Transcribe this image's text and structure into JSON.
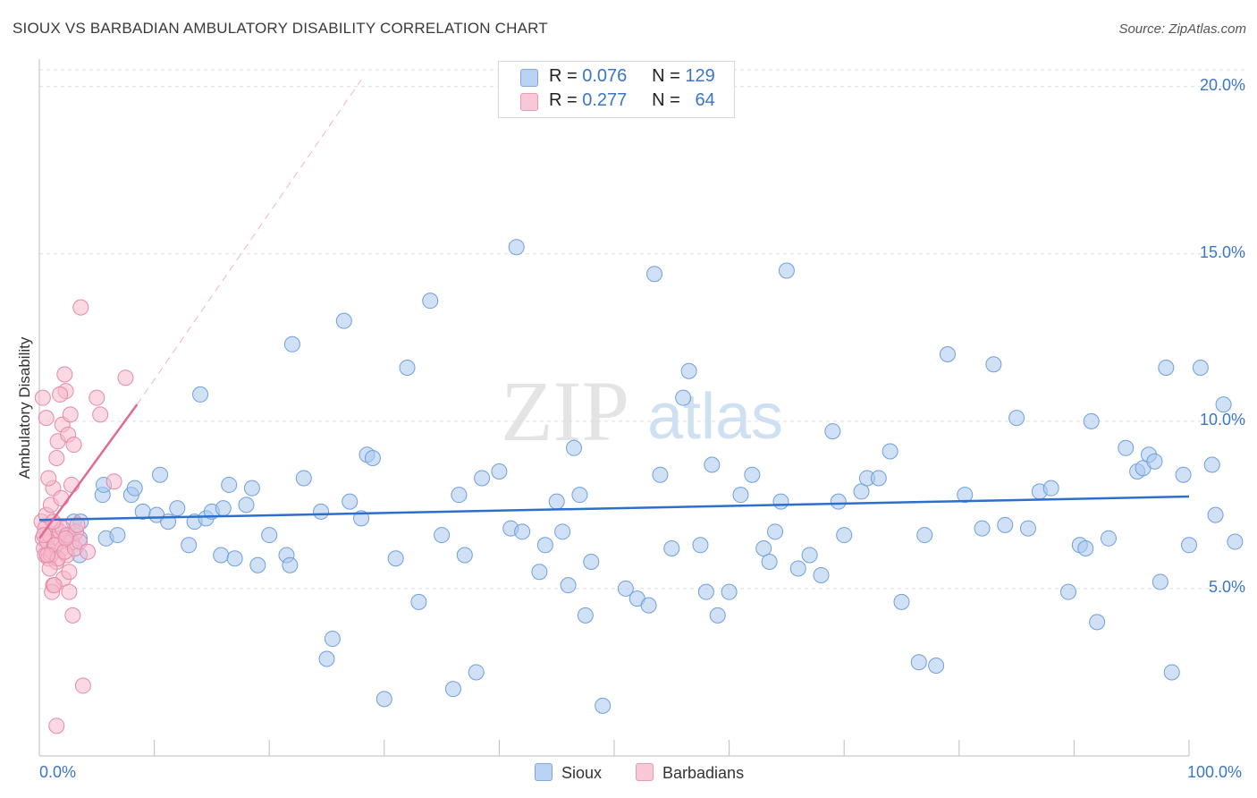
{
  "title": "SIOUX VS BARBADIAN AMBULATORY DISABILITY CORRELATION CHART",
  "source": "Source: ZipAtlas.com",
  "watermark": {
    "zip": "ZIP",
    "atlas": "atlas"
  },
  "legend": {
    "rows": [
      {
        "r_label": "R =",
        "r_value": "0.076",
        "n_label": "N =",
        "n_value": "129"
      },
      {
        "r_label": "R =",
        "r_value": "0.277",
        "n_label": "N =",
        "n_value": "64"
      }
    ]
  },
  "colors": {
    "sioux_fill": "#a9c8ef",
    "sioux_stroke": "#6f9fdc",
    "sioux_line": "#2d6fcc",
    "barb_fill": "#f6b9cc",
    "barb_stroke": "#e58aa8",
    "barb_line": "#e06a93",
    "tick_label": "#3a76c8",
    "grid": "#dddddd"
  },
  "chart_data": {
    "type": "scatter",
    "title": "SIOUX VS BARBADIAN AMBULATORY DISABILITY CORRELATION CHART",
    "ylabel": "Ambulatory Disability",
    "xlabel": "",
    "xlim": [
      0,
      100
    ],
    "ylim": [
      0,
      20.5
    ],
    "x_tick_labels": [
      "0.0%",
      "100.0%"
    ],
    "y_ticks": [
      5,
      10,
      15,
      20
    ],
    "y_tick_labels": [
      "5.0%",
      "10.0%",
      "15.0%",
      "20.0%"
    ],
    "grid": true,
    "legend_position": "bottom",
    "series": [
      {
        "name": "Sioux",
        "trend": {
          "x0": 0,
          "y0": 7.05,
          "x1": 100,
          "y1": 7.75
        },
        "points": [
          [
            2.5,
            6.6
          ],
          [
            3.0,
            7.0
          ],
          [
            3.5,
            6.5
          ],
          [
            3.5,
            6.0
          ],
          [
            3.6,
            7.0
          ],
          [
            5.5,
            7.8
          ],
          [
            5.6,
            8.1
          ],
          [
            5.8,
            6.5
          ],
          [
            6.8,
            6.6
          ],
          [
            8.0,
            7.8
          ],
          [
            8.3,
            8.0
          ],
          [
            9.0,
            7.3
          ],
          [
            10.2,
            7.2
          ],
          [
            10.5,
            8.4
          ],
          [
            11.2,
            7.0
          ],
          [
            12.0,
            7.4
          ],
          [
            13.0,
            6.3
          ],
          [
            13.5,
            7.0
          ],
          [
            14.0,
            10.8
          ],
          [
            14.5,
            7.1
          ],
          [
            15.0,
            7.3
          ],
          [
            15.8,
            6.0
          ],
          [
            16.0,
            7.4
          ],
          [
            16.5,
            8.1
          ],
          [
            17.0,
            5.9
          ],
          [
            18.0,
            7.5
          ],
          [
            18.5,
            8.0
          ],
          [
            19.0,
            5.7
          ],
          [
            20.0,
            6.6
          ],
          [
            21.5,
            6.0
          ],
          [
            21.8,
            5.7
          ],
          [
            22.0,
            12.3
          ],
          [
            23.0,
            8.3
          ],
          [
            24.5,
            7.3
          ],
          [
            25.0,
            2.9
          ],
          [
            25.5,
            3.5
          ],
          [
            26.5,
            13.0
          ],
          [
            27.0,
            7.6
          ],
          [
            28.0,
            7.1
          ],
          [
            28.5,
            9.0
          ],
          [
            29.0,
            8.9
          ],
          [
            30.0,
            1.7
          ],
          [
            31.0,
            5.9
          ],
          [
            32.0,
            11.6
          ],
          [
            33.0,
            4.6
          ],
          [
            34.0,
            13.6
          ],
          [
            35.0,
            6.6
          ],
          [
            36.0,
            2.0
          ],
          [
            36.5,
            7.8
          ],
          [
            37.0,
            6.0
          ],
          [
            38.0,
            2.5
          ],
          [
            38.5,
            8.3
          ],
          [
            40.0,
            8.5
          ],
          [
            41.0,
            6.8
          ],
          [
            41.5,
            15.2
          ],
          [
            42.0,
            6.7
          ],
          [
            43.5,
            5.5
          ],
          [
            44.0,
            6.3
          ],
          [
            45.0,
            7.6
          ],
          [
            45.5,
            6.7
          ],
          [
            46.0,
            5.1
          ],
          [
            46.5,
            9.2
          ],
          [
            47.0,
            7.8
          ],
          [
            47.5,
            4.2
          ],
          [
            48.0,
            5.8
          ],
          [
            49.0,
            1.5
          ],
          [
            51.0,
            5.0
          ],
          [
            52.0,
            4.7
          ],
          [
            53.0,
            4.5
          ],
          [
            53.5,
            14.4
          ],
          [
            54.0,
            8.4
          ],
          [
            55.0,
            6.2
          ],
          [
            56.0,
            10.7
          ],
          [
            56.5,
            11.5
          ],
          [
            57.5,
            6.3
          ],
          [
            58.0,
            4.9
          ],
          [
            58.5,
            8.7
          ],
          [
            59.0,
            4.2
          ],
          [
            60.0,
            4.9
          ],
          [
            61.0,
            7.8
          ],
          [
            62.0,
            8.4
          ],
          [
            63.0,
            6.2
          ],
          [
            63.5,
            5.8
          ],
          [
            64.0,
            6.7
          ],
          [
            64.5,
            7.6
          ],
          [
            65.0,
            14.5
          ],
          [
            66.0,
            5.6
          ],
          [
            67.0,
            6.0
          ],
          [
            68.0,
            5.4
          ],
          [
            69.0,
            9.7
          ],
          [
            69.5,
            7.6
          ],
          [
            70.0,
            6.6
          ],
          [
            71.5,
            7.9
          ],
          [
            72.0,
            8.3
          ],
          [
            73.0,
            8.3
          ],
          [
            74.0,
            9.1
          ],
          [
            75.0,
            4.6
          ],
          [
            76.5,
            2.8
          ],
          [
            77.0,
            6.6
          ],
          [
            78.0,
            2.7
          ],
          [
            79.0,
            12.0
          ],
          [
            80.5,
            7.8
          ],
          [
            82.0,
            6.8
          ],
          [
            83.0,
            11.7
          ],
          [
            84.0,
            6.9
          ],
          [
            85.0,
            10.1
          ],
          [
            86.0,
            6.8
          ],
          [
            87.0,
            7.9
          ],
          [
            88.0,
            8.0
          ],
          [
            89.5,
            4.9
          ],
          [
            90.5,
            6.3
          ],
          [
            91.0,
            6.2
          ],
          [
            91.5,
            10.0
          ],
          [
            92.0,
            4.0
          ],
          [
            93.0,
            6.5
          ],
          [
            94.5,
            9.2
          ],
          [
            95.5,
            8.5
          ],
          [
            96.0,
            8.6
          ],
          [
            96.5,
            9.0
          ],
          [
            97.0,
            8.8
          ],
          [
            97.5,
            5.2
          ],
          [
            98.0,
            11.6
          ],
          [
            98.5,
            2.5
          ],
          [
            99.5,
            8.4
          ],
          [
            100.0,
            6.3
          ],
          [
            101.0,
            11.6
          ],
          [
            102.0,
            8.7
          ],
          [
            102.3,
            7.2
          ],
          [
            103.0,
            10.5
          ],
          [
            104.0,
            6.4
          ]
        ]
      },
      {
        "name": "Barbadians",
        "trend": {
          "x0": 0,
          "y0": 6.5,
          "x1": 8.5,
          "y1": 10.5
        },
        "trend_extended": {
          "x0": 8.5,
          "y0": 10.5,
          "x1": 28,
          "y1": 20.2
        },
        "points": [
          [
            0.2,
            7.0
          ],
          [
            0.3,
            6.5
          ],
          [
            0.4,
            6.2
          ],
          [
            0.5,
            6.0
          ],
          [
            0.5,
            6.8
          ],
          [
            0.6,
            7.2
          ],
          [
            0.7,
            6.4
          ],
          [
            0.8,
            5.9
          ],
          [
            0.9,
            6.6
          ],
          [
            1.0,
            7.5
          ],
          [
            1.1,
            6.1
          ],
          [
            1.2,
            5.1
          ],
          [
            1.2,
            8.0
          ],
          [
            1.3,
            6.3
          ],
          [
            1.4,
            6.9
          ],
          [
            1.5,
            5.8
          ],
          [
            1.5,
            8.9
          ],
          [
            1.6,
            9.4
          ],
          [
            1.7,
            6.5
          ],
          [
            1.8,
            6.7
          ],
          [
            1.9,
            7.7
          ],
          [
            2.0,
            6.2
          ],
          [
            2.0,
            9.9
          ],
          [
            2.1,
            5.3
          ],
          [
            2.2,
            11.4
          ],
          [
            2.3,
            10.9
          ],
          [
            2.4,
            6.0
          ],
          [
            2.5,
            9.6
          ],
          [
            2.6,
            4.9
          ],
          [
            2.7,
            10.2
          ],
          [
            2.8,
            6.4
          ],
          [
            2.9,
            4.2
          ],
          [
            3.0,
            9.3
          ],
          [
            0.3,
            10.7
          ],
          [
            0.6,
            10.1
          ],
          [
            0.8,
            8.3
          ],
          [
            1.0,
            6.0
          ],
          [
            1.1,
            4.9
          ],
          [
            1.3,
            5.1
          ],
          [
            1.4,
            6.3
          ],
          [
            1.6,
            5.9
          ],
          [
            1.8,
            10.8
          ],
          [
            2.0,
            6.8
          ],
          [
            2.2,
            6.1
          ],
          [
            2.4,
            6.6
          ],
          [
            2.6,
            5.5
          ],
          [
            2.8,
            8.1
          ],
          [
            3.1,
            6.2
          ],
          [
            3.2,
            6.7
          ],
          [
            3.3,
            6.9
          ],
          [
            3.5,
            6.4
          ],
          [
            3.6,
            13.4
          ],
          [
            3.8,
            2.1
          ],
          [
            4.2,
            6.1
          ],
          [
            5.0,
            10.7
          ],
          [
            5.3,
            10.2
          ],
          [
            6.5,
            8.2
          ],
          [
            7.5,
            11.3
          ],
          [
            0.9,
            5.6
          ],
          [
            1.5,
            0.9
          ],
          [
            0.4,
            6.6
          ],
          [
            0.7,
            6.0
          ],
          [
            1.2,
            7.0
          ],
          [
            2.3,
            6.5
          ]
        ]
      }
    ]
  }
}
